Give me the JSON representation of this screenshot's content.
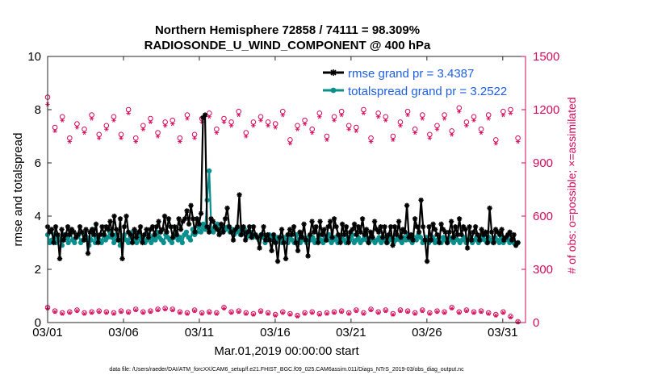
{
  "chart_data": {
    "type": "line",
    "title_line1": "Northern Hemisphere 72858 / 74111 = 98.309%",
    "title_line2": "RADIOSONDE_U_WIND_COMPONENT @ 400 hPa",
    "xlabel": "Mar.01,2019 00:00:00 start",
    "ylabel_left": "rmse and totalspread",
    "ylabel_right": "# of obs: o=possible; ×=assimilated",
    "footer": "data file: /Users/raeder/DAI/ATM_forcXX/CAM6_setup/f.e21.FHIST_BGC.f09_025.CAM6assim.011/Diags_NTrS_2019-03/obs_diag_output.nc",
    "x_range_days": [
      0,
      31.5
    ],
    "x_ticks": [
      {
        "day": 0,
        "label": "03/01"
      },
      {
        "day": 5,
        "label": "03/06"
      },
      {
        "day": 10,
        "label": "03/11"
      },
      {
        "day": 15,
        "label": "03/16"
      },
      {
        "day": 20,
        "label": "03/21"
      },
      {
        "day": 25,
        "label": "03/26"
      },
      {
        "day": 30,
        "label": "03/31"
      }
    ],
    "y_left_range": [
      0,
      10
    ],
    "y_left_ticks": [
      "0",
      "2",
      "4",
      "6",
      "8",
      "10"
    ],
    "y_right_range": [
      0,
      1500
    ],
    "y_right_ticks": [
      "0",
      "300",
      "600",
      "900",
      "1200",
      "1500"
    ],
    "colors": {
      "rmse": "#000000",
      "spread": "#0a8f8f",
      "obs": "#d6085b",
      "legend_text": "#1f5fe0"
    },
    "series": [
      {
        "name": "rmse grand pr = 3.4387",
        "key": "rmse",
        "values": [
          3.6,
          3.4,
          3.5,
          3.0,
          3.6,
          3.3,
          2.4,
          3.5,
          3.1,
          3.3,
          3.6,
          3.3,
          3.5,
          3.4,
          3.2,
          3.3,
          3.6,
          3.4,
          3.1,
          3.5,
          2.6,
          3.4,
          3.5,
          3.3,
          3.7,
          3.0,
          3.3,
          3.6,
          3.3,
          3.6,
          3.5,
          3.8,
          3.3,
          4.0,
          3.5,
          3.1,
          3.9,
          2.4,
          3.6,
          4.0,
          3.4,
          3.3,
          3.0,
          3.5,
          3.2,
          3.4,
          3.6,
          3.0,
          3.3,
          3.5,
          3.2,
          3.5,
          3.6,
          3.3,
          3.6,
          3.8,
          3.4,
          3.5,
          4.0,
          3.4,
          3.9,
          3.6,
          3.2,
          3.6,
          3.3,
          3.9,
          3.5,
          3.8,
          3.9,
          4.2,
          3.7,
          4.4,
          3.9,
          3.4,
          3.9,
          3.7,
          4.1,
          7.7,
          7.8,
          3.6,
          3.4,
          3.9,
          3.8,
          3.6,
          3.5,
          3.3,
          3.7,
          3.4,
          3.9,
          4.3,
          3.6,
          3.4,
          3.1,
          3.5,
          3.6,
          4.8,
          3.3,
          3.6,
          3.1,
          3.4,
          3.6,
          3.2,
          3.6,
          3.3,
          3.2,
          2.8,
          3.3,
          3.6,
          3.1,
          3.3,
          3.1,
          2.7,
          3.3,
          3.0,
          2.3,
          3.2,
          3.5,
          3.0,
          2.4,
          3.3,
          3.5,
          3.3,
          3.6,
          3.0,
          2.7,
          3.4,
          3.2,
          3.7,
          3.1,
          2.5,
          3.3,
          3.8,
          3.4,
          3.6,
          3.0,
          3.8,
          3.3,
          3.5,
          3.1,
          3.6,
          3.8,
          3.2,
          3.9,
          3.6,
          3.3,
          3.0,
          3.7,
          3.3,
          3.6,
          3.0,
          3.4,
          3.5,
          3.7,
          3.3,
          3.6,
          3.4,
          3.9,
          3.3,
          3.5,
          3.0,
          3.4,
          3.2,
          3.8,
          3.5,
          3.4,
          3.6,
          3.2,
          3.6,
          3.0,
          3.3,
          3.6,
          2.9,
          3.6,
          3.3,
          3.8,
          3.2,
          3.5,
          3.4,
          4.4,
          3.2,
          3.3,
          3.1,
          3.9,
          3.6,
          3.4,
          4.6,
          3.6,
          3.1,
          2.3,
          3.6,
          3.1,
          3.7,
          3.5,
          3.3,
          3.0,
          3.7,
          3.5,
          3.4,
          3.0,
          3.4,
          3.8,
          3.2,
          3.6,
          3.3,
          3.9,
          3.3,
          3.6,
          3.5,
          2.8,
          3.6,
          3.1,
          3.4,
          3.6,
          3.3,
          3.1,
          3.5,
          3.3,
          3.4,
          3.0,
          4.3,
          3.4,
          3.0,
          3.5,
          3.4,
          3.3,
          3.5,
          3.1,
          3.2,
          3.3,
          3.4,
          3.1,
          3.3,
          2.9,
          3.0
        ]
      },
      {
        "name": "totalspread grand pr = 3.2522",
        "key": "spread",
        "values": [
          3.3,
          3.0,
          3.1,
          3.3,
          3.0,
          3.2,
          3.1,
          2.9,
          3.3,
          3.2,
          3.0,
          3.4,
          3.1,
          3.0,
          3.2,
          3.3,
          3.0,
          3.1,
          3.3,
          3.2,
          2.9,
          3.1,
          3.5,
          3.0,
          3.2,
          3.1,
          3.0,
          3.3,
          3.1,
          3.2,
          3.4,
          3.2,
          3.0,
          3.3,
          3.1,
          2.9,
          3.2,
          3.3,
          3.1,
          3.0,
          3.2,
          3.4,
          3.1,
          3.0,
          3.3,
          3.1,
          3.2,
          3.0,
          3.1,
          3.3,
          3.0,
          3.2,
          3.1,
          3.4,
          3.2,
          3.1,
          3.0,
          3.3,
          3.2,
          3.1,
          3.0,
          3.2,
          3.4,
          3.1,
          3.2,
          3.0,
          3.3,
          3.4,
          3.2,
          3.1,
          3.5,
          3.3,
          3.4,
          3.6,
          3.4,
          3.7,
          3.5,
          4.6,
          5.7,
          3.5,
          3.4,
          3.6,
          3.7,
          3.5,
          3.4,
          3.6,
          3.5,
          3.6,
          3.4,
          3.5,
          3.3,
          3.4,
          3.5,
          3.3,
          3.4,
          3.5,
          3.2,
          3.3,
          3.4,
          3.2,
          3.3,
          3.2,
          3.1,
          3.3,
          3.2,
          3.0,
          3.1,
          3.3,
          3.2,
          3.1,
          3.0,
          3.2,
          3.1,
          3.0,
          3.2,
          3.1,
          3.0,
          3.2,
          3.1,
          3.0,
          3.3,
          3.1,
          3.0,
          3.2,
          3.1,
          3.0,
          3.2,
          3.1,
          3.2,
          3.0,
          3.1,
          3.3,
          3.1,
          3.0,
          3.2,
          3.1,
          3.3,
          3.0,
          3.1,
          3.2,
          3.0,
          3.1,
          3.2,
          3.1,
          3.0,
          3.2,
          3.1,
          3.3,
          3.0,
          3.1,
          3.2,
          3.0,
          3.1,
          3.2,
          3.1,
          3.0,
          3.2,
          3.1,
          3.0,
          3.1,
          3.2,
          3.0,
          3.1,
          3.2,
          3.0,
          3.1,
          3.2,
          3.0,
          3.1,
          3.2,
          3.1,
          3.0,
          3.2,
          3.1,
          3.3,
          3.1,
          3.0,
          3.2,
          3.1,
          3.3,
          3.2,
          3.0,
          3.1,
          3.2,
          3.0,
          3.1,
          3.2,
          3.0,
          3.1,
          3.2,
          3.0,
          3.2,
          3.1,
          3.0,
          3.2,
          3.1,
          3.0,
          3.2,
          3.1,
          3.0,
          3.1,
          3.2,
          3.0,
          3.1,
          3.2,
          3.0,
          3.1,
          3.2,
          3.0,
          3.1,
          3.2,
          3.1,
          3.0,
          3.2,
          3.1,
          3.0,
          3.2,
          3.1,
          3.0,
          3.2,
          3.0,
          3.1,
          3.2,
          3.0,
          3.1,
          3.0,
          2.9,
          3.0
        ]
      },
      {
        "name": "obs possible (daily)",
        "key": "obs_possible",
        "axis": "right",
        "values": [
          1270,
          1100,
          1160,
          1040,
          1120,
          1090,
          1170,
          1060,
          1110,
          1160,
          1060,
          1200,
          1040,
          1110,
          1150,
          1070,
          1130,
          1140,
          1040,
          1170,
          1060,
          1150,
          1180,
          1090,
          1150,
          1130,
          1190,
          1070,
          1130,
          1160,
          1130,
          1120,
          1190,
          1030,
          1110,
          1140,
          1090,
          1180,
          1050,
          1160,
          1190,
          1110,
          1100,
          1200,
          1040,
          1180,
          1160,
          1050,
          1130,
          1190,
          1090,
          1170,
          1060,
          1110,
          1170,
          1080,
          1210,
          1130,
          1160,
          1090,
          1170,
          1030,
          1190,
          1200,
          1040
        ]
      },
      {
        "name": "obs assimilated (daily)",
        "key": "obs_assim",
        "axis": "right",
        "values": [
          1230,
          1080,
          1140,
          1020,
          1100,
          1070,
          1150,
          1040,
          1090,
          1140,
          1040,
          1180,
          1020,
          1090,
          1130,
          1050,
          1110,
          1120,
          1020,
          1150,
          1040,
          1130,
          1160,
          1070,
          1130,
          1110,
          1170,
          1050,
          1110,
          1140,
          1110,
          1100,
          1170,
          1010,
          1090,
          1120,
          1070,
          1160,
          1030,
          1140,
          1170,
          1090,
          1080,
          1180,
          1020,
          1160,
          1140,
          1030,
          1110,
          1170,
          1070,
          1150,
          1040,
          1090,
          1150,
          1060,
          1190,
          1110,
          1140,
          1070,
          1150,
          1010,
          1170,
          1180,
          1020
        ]
      },
      {
        "name": "obs possible (low)",
        "key": "obs_low_possible",
        "axis": "right",
        "values": [
          85,
          65,
          55,
          60,
          70,
          55,
          60,
          65,
          60,
          55,
          65,
          60,
          75,
          60,
          65,
          75,
          80,
          75,
          60,
          55,
          70,
          55,
          60,
          55,
          85,
          60,
          65,
          55,
          50,
          65,
          55,
          45,
          60,
          50,
          40,
          55,
          60,
          50,
          55,
          60,
          65,
          55,
          70,
          55,
          75,
          60,
          70,
          50,
          70,
          65,
          55,
          70,
          55,
          65,
          60,
          85,
          60,
          70,
          60,
          65,
          55,
          45,
          60,
          35,
          5
        ]
      },
      {
        "name": "obs assimilated (low)",
        "key": "obs_low_assim",
        "axis": "right",
        "values": [
          80,
          60,
          50,
          55,
          65,
          50,
          55,
          60,
          55,
          50,
          60,
          55,
          70,
          55,
          60,
          70,
          75,
          70,
          55,
          50,
          65,
          50,
          55,
          50,
          80,
          55,
          60,
          50,
          45,
          60,
          50,
          40,
          55,
          45,
          35,
          50,
          55,
          45,
          50,
          55,
          60,
          50,
          65,
          50,
          70,
          55,
          65,
          45,
          65,
          60,
          50,
          65,
          50,
          60,
          55,
          80,
          55,
          65,
          55,
          60,
          50,
          40,
          55,
          30,
          2
        ]
      }
    ]
  }
}
